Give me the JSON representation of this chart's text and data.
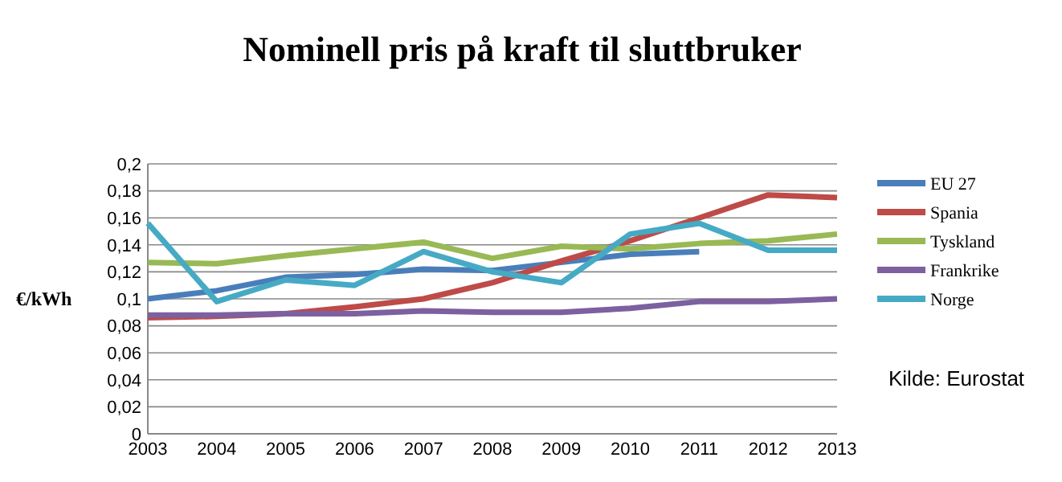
{
  "chart_data": {
    "type": "line",
    "title": "Nominell pris på kraft til sluttbruker",
    "ylabel": "€/kWh",
    "annotations": [
      "Kilde: Eurostat"
    ],
    "x": [
      2003,
      2004,
      2005,
      2006,
      2007,
      2008,
      2009,
      2010,
      2011,
      2012,
      2013
    ],
    "xlim": [
      2003,
      2013
    ],
    "xticks": [
      2003,
      2004,
      2005,
      2006,
      2007,
      2008,
      2009,
      2010,
      2011,
      2012,
      2013
    ],
    "ylim": [
      0,
      0.2
    ],
    "yticks": [
      {
        "value": 0,
        "label": "0"
      },
      {
        "value": 0.02,
        "label": "0,02"
      },
      {
        "value": 0.04,
        "label": "0,04"
      },
      {
        "value": 0.06,
        "label": "0,06"
      },
      {
        "value": 0.08,
        "label": "0,08"
      },
      {
        "value": 0.1,
        "label": "0,1"
      },
      {
        "value": 0.12,
        "label": "0,12"
      },
      {
        "value": 0.14,
        "label": "0,14"
      },
      {
        "value": 0.16,
        "label": "0,16"
      },
      {
        "value": 0.18,
        "label": "0,18"
      },
      {
        "value": 0.2,
        "label": "0,2"
      }
    ],
    "grid": "y",
    "legend": "right",
    "marker": "none",
    "line_style": "solid",
    "series": [
      {
        "name": "EU 27",
        "color": "#4a7ebb",
        "values": [
          0.1,
          0.106,
          0.116,
          0.118,
          0.122,
          0.121,
          0.127,
          0.133,
          0.135,
          null,
          null
        ]
      },
      {
        "name": "Spania",
        "color": "#be4b48",
        "values": [
          0.086,
          0.087,
          0.089,
          0.094,
          0.1,
          0.112,
          0.128,
          0.143,
          0.16,
          0.177,
          0.175
        ]
      },
      {
        "name": "Tyskland",
        "color": "#98b954",
        "values": [
          0.127,
          0.126,
          0.132,
          0.137,
          0.142,
          0.13,
          0.139,
          0.137,
          0.141,
          0.143,
          0.148
        ]
      },
      {
        "name": "Frankrike",
        "color": "#7d60a0",
        "values": [
          0.088,
          0.088,
          0.089,
          0.089,
          0.091,
          0.09,
          0.09,
          0.093,
          0.098,
          0.098,
          0.1
        ]
      },
      {
        "name": "Norge",
        "color": "#46aac5",
        "values": [
          0.156,
          0.098,
          0.114,
          0.11,
          0.135,
          0.12,
          0.112,
          0.148,
          0.156,
          0.136,
          0.136
        ]
      }
    ]
  }
}
